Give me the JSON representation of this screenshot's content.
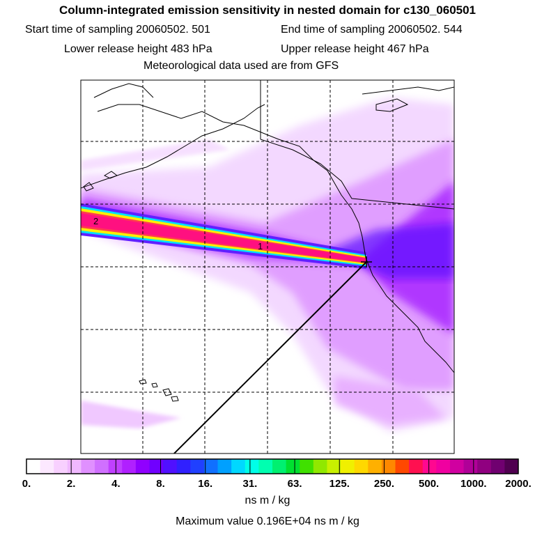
{
  "header": {
    "title": "Column-integrated emission sensitivity in nested domain for c130_060501",
    "start_label": "Start time of sampling 20060502.   501",
    "end_label": "End time of sampling 20060502.   544",
    "lower_label": "Lower release height  483 hPa",
    "upper_label": "Upper release height  467 hPa",
    "met_label": "Meteorological data used are from GFS"
  },
  "map": {
    "markers": [
      "1",
      "2"
    ],
    "colors": {
      "plume_core": "#ff1080",
      "plume_edge_yellow": "#ffee00",
      "plume_edge_cyan": "#00e8ff",
      "sensitivity_purple": "#a000ff",
      "sensitivity_light": "#f0c8ff",
      "coastline": "#000000",
      "grid": "#000000"
    }
  },
  "colorbar": {
    "colors": [
      "#ffffff",
      "#fce8ff",
      "#f8d0ff",
      "#f0b8ff",
      "#e090ff",
      "#d070ff",
      "#c040ff",
      "#b020ff",
      "#9000ff",
      "#7000ff",
      "#5010ff",
      "#3020ff",
      "#2040ff",
      "#1070ff",
      "#00a0ff",
      "#00d8ff",
      "#00ffe8",
      "#00ffb0",
      "#00f070",
      "#00e030",
      "#40e000",
      "#90e800",
      "#c8f000",
      "#f0f000",
      "#ffd800",
      "#ffb000",
      "#ff8800",
      "#ff4800",
      "#ff1050",
      "#ff0890",
      "#f000a0",
      "#d000a0",
      "#b00098",
      "#900080",
      "#700070",
      "#500050"
    ],
    "tick_labels": [
      "0.",
      "2.",
      "4.",
      "8.",
      "16.",
      "31.",
      "63.",
      "125.",
      "250.",
      "500.",
      "1000.",
      "2000."
    ],
    "units": "ns m / kg",
    "max_value": "Maximum value  0.196E+04 ns m / kg"
  }
}
